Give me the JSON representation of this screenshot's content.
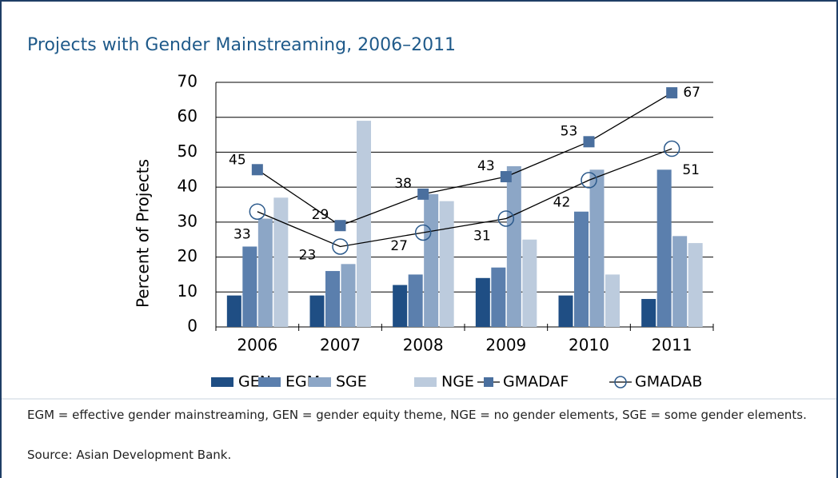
{
  "chart_data": {
    "type": "bar_line",
    "title": "Projects with Gender Mainstreaming, 2006–2011",
    "y_label": "Percent of Projects",
    "categories": [
      "2006",
      "2007",
      "2008",
      "2009",
      "2010",
      "2011"
    ],
    "ylim": [
      0,
      70
    ],
    "yticks": [
      0,
      10,
      20,
      30,
      40,
      50,
      60,
      70
    ],
    "grid": true,
    "series": [
      {
        "name": "GEN",
        "color": "#1f4e84",
        "kind": "bar",
        "values": [
          9,
          9,
          12,
          14,
          9,
          8
        ]
      },
      {
        "name": "EGM",
        "color": "#5b7fad",
        "kind": "bar",
        "values": [
          23,
          16,
          15,
          17,
          33,
          45
        ]
      },
      {
        "name": "SGE",
        "color": "#8ca6c6",
        "kind": "bar",
        "values": [
          31,
          18,
          38,
          46,
          45,
          26
        ]
      },
      {
        "name": "NGE",
        "color": "#bccbdd",
        "kind": "bar",
        "values": [
          37,
          59,
          36,
          25,
          15,
          24
        ]
      },
      {
        "name": "GMADAF",
        "color": "#4a6f9e",
        "kind": "line",
        "marker": "square",
        "values": [
          45,
          29,
          38,
          43,
          53,
          67
        ]
      },
      {
        "name": "GMADAB",
        "color": "#2c5a8c",
        "kind": "line",
        "marker": "circle",
        "values": [
          33,
          23,
          27,
          31,
          42,
          51
        ]
      }
    ],
    "notes": [
      "EGM = effective gender mainstreaming, GEN = gender equity theme, NGE = no gender elements, SGE = some gender elements.",
      "Source: Asian Development Bank."
    ]
  }
}
